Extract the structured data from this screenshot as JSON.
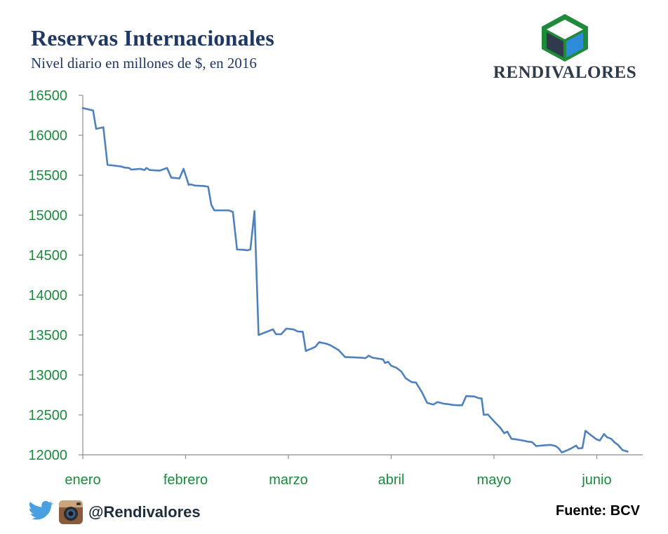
{
  "header": {
    "title": "Reservas Internacionales",
    "subtitle": "Nivel diario en millones de $, en 2016"
  },
  "brand": {
    "name": "RENDIVALORES"
  },
  "footer": {
    "handle": "@Rendivalores",
    "source": "Fuente: BCV",
    "icons": [
      "twitter-icon",
      "instagram-icon"
    ]
  },
  "colors": {
    "title": "#1f3864",
    "line": "#4f81bd",
    "axis_labels": "#1a8a3c",
    "logo_green": "#1e8a3a",
    "logo_blue": "#2e8bd8",
    "logo_dark": "#2f3b4a"
  },
  "chart_data": {
    "type": "line",
    "title": "Reservas Internacionales",
    "subtitle": "Nivel diario en millones de $, en 2016",
    "xlabel": "",
    "ylabel": "",
    "ylim": [
      12000,
      16500
    ],
    "yticks": [
      12000,
      12500,
      13000,
      13500,
      14000,
      14500,
      15000,
      15500,
      16000,
      16500
    ],
    "x_categories": [
      "enero",
      "febrero",
      "marzo",
      "abril",
      "mayo",
      "junio"
    ],
    "xlim": [
      0,
      5.45
    ],
    "grid": false,
    "legend": "none",
    "series": [
      {
        "color": "#4f81bd",
        "points": [
          [
            0.0,
            16340
          ],
          [
            0.1,
            16310
          ],
          [
            0.13,
            16080
          ],
          [
            0.2,
            16100
          ],
          [
            0.24,
            15630
          ],
          [
            0.37,
            15610
          ],
          [
            0.41,
            15595
          ],
          [
            0.45,
            15590
          ],
          [
            0.47,
            15570
          ],
          [
            0.56,
            15580
          ],
          [
            0.6,
            15565
          ],
          [
            0.62,
            15590
          ],
          [
            0.65,
            15565
          ],
          [
            0.71,
            15560
          ],
          [
            0.75,
            15558
          ],
          [
            0.82,
            15590
          ],
          [
            0.86,
            15470
          ],
          [
            0.94,
            15460
          ],
          [
            0.98,
            15580
          ],
          [
            1.03,
            15380
          ],
          [
            1.05,
            15385
          ],
          [
            1.09,
            15370
          ],
          [
            1.18,
            15365
          ],
          [
            1.22,
            15355
          ],
          [
            1.25,
            15130
          ],
          [
            1.28,
            15060
          ],
          [
            1.42,
            15060
          ],
          [
            1.46,
            15040
          ],
          [
            1.5,
            14570
          ],
          [
            1.57,
            14565
          ],
          [
            1.6,
            14560
          ],
          [
            1.63,
            14570
          ],
          [
            1.67,
            15050
          ],
          [
            1.71,
            13500
          ],
          [
            1.85,
            13570
          ],
          [
            1.88,
            13510
          ],
          [
            1.93,
            13510
          ],
          [
            1.98,
            13580
          ],
          [
            2.05,
            13570
          ],
          [
            2.09,
            13545
          ],
          [
            2.14,
            13540
          ],
          [
            2.17,
            13300
          ],
          [
            2.26,
            13350
          ],
          [
            2.3,
            13410
          ],
          [
            2.37,
            13390
          ],
          [
            2.41,
            13370
          ],
          [
            2.45,
            13340
          ],
          [
            2.49,
            13310
          ],
          [
            2.55,
            13225
          ],
          [
            2.71,
            13215
          ],
          [
            2.75,
            13210
          ],
          [
            2.78,
            13240
          ],
          [
            2.82,
            13215
          ],
          [
            2.92,
            13195
          ],
          [
            2.94,
            13150
          ],
          [
            2.97,
            13165
          ],
          [
            3.0,
            13115
          ],
          [
            3.05,
            13090
          ],
          [
            3.1,
            13040
          ],
          [
            3.14,
            12960
          ],
          [
            3.2,
            12910
          ],
          [
            3.24,
            12905
          ],
          [
            3.3,
            12780
          ],
          [
            3.35,
            12650
          ],
          [
            3.41,
            12630
          ],
          [
            3.45,
            12660
          ],
          [
            3.51,
            12640
          ],
          [
            3.55,
            12635
          ],
          [
            3.6,
            12625
          ],
          [
            3.65,
            12620
          ],
          [
            3.69,
            12620
          ],
          [
            3.73,
            12735
          ],
          [
            3.81,
            12730
          ],
          [
            3.85,
            12710
          ],
          [
            3.88,
            12705
          ],
          [
            3.9,
            12500
          ],
          [
            3.94,
            12505
          ],
          [
            4.0,
            12420
          ],
          [
            4.06,
            12340
          ],
          [
            4.1,
            12270
          ],
          [
            4.13,
            12290
          ],
          [
            4.17,
            12200
          ],
          [
            4.21,
            12195
          ],
          [
            4.3,
            12175
          ],
          [
            4.33,
            12165
          ],
          [
            4.37,
            12160
          ],
          [
            4.41,
            12110
          ],
          [
            4.5,
            12120
          ],
          [
            4.55,
            12125
          ],
          [
            4.6,
            12110
          ],
          [
            4.63,
            12080
          ],
          [
            4.66,
            12030
          ],
          [
            4.7,
            12050
          ],
          [
            4.75,
            12080
          ],
          [
            4.8,
            12115
          ],
          [
            4.82,
            12080
          ],
          [
            4.86,
            12085
          ],
          [
            4.89,
            12300
          ],
          [
            4.93,
            12260
          ],
          [
            4.96,
            12230
          ],
          [
            5.0,
            12190
          ],
          [
            5.03,
            12180
          ],
          [
            5.07,
            12260
          ],
          [
            5.1,
            12220
          ],
          [
            5.14,
            12200
          ],
          [
            5.17,
            12160
          ],
          [
            5.21,
            12120
          ],
          [
            5.25,
            12060
          ],
          [
            5.3,
            12040
          ]
        ]
      }
    ]
  }
}
